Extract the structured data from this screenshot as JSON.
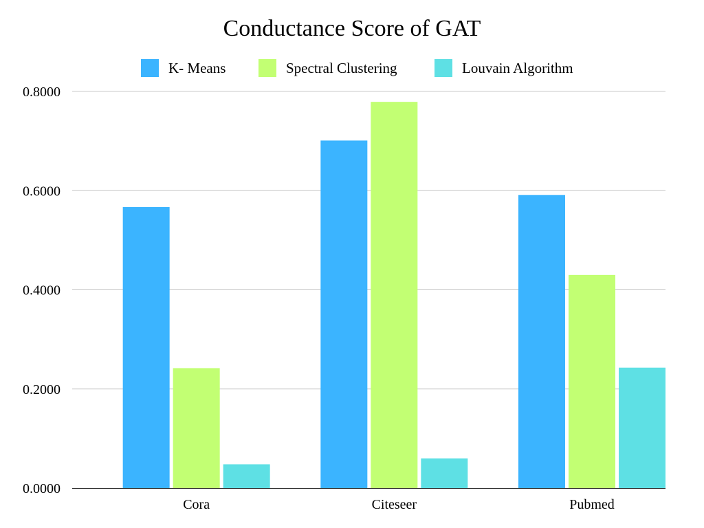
{
  "chart_data": {
    "type": "bar",
    "title": "Conductance Score of GAT",
    "xlabel": "",
    "ylabel": "",
    "categories": [
      "Cora",
      "Citeseer",
      "Pubmed"
    ],
    "series": [
      {
        "name": "K- Means",
        "color": "#3bb4ff",
        "values": [
          0.567,
          0.701,
          0.591
        ]
      },
      {
        "name": "Spectral Clustering",
        "color": "#c2ff73",
        "values": [
          0.242,
          0.779,
          0.43
        ]
      },
      {
        "name": "Louvain Algorithm",
        "color": "#5ee0e4",
        "values": [
          0.048,
          0.06,
          0.243
        ]
      }
    ],
    "ylim": [
      0,
      0.8
    ],
    "yticks": [
      0,
      0.2,
      0.4,
      0.6,
      0.8
    ],
    "ytick_labels": [
      "0.0000",
      "0.2000",
      "0.4000",
      "0.6000",
      "0.8000"
    ],
    "grid": true,
    "legend_position": "top"
  }
}
